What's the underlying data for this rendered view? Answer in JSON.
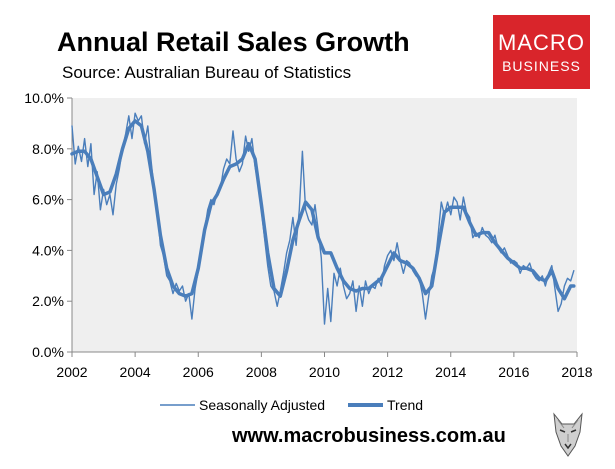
{
  "header": {
    "title": "Annual Retail Sales Growth",
    "subtitle": "Source: Australian Bureau of Statistics"
  },
  "logo": {
    "line1": "MACRO",
    "line2": "BUSINESS"
  },
  "footer": {
    "url": "www.macrobusiness.com.au"
  },
  "colors": {
    "series": "#4a7ebb",
    "plot_bg": "#efefef",
    "logo_bg": "#d9252b"
  },
  "chart_data": {
    "type": "line",
    "title": "Annual Retail Sales Growth",
    "xlabel": "",
    "ylabel": "",
    "xlim": [
      2002,
      2018
    ],
    "ylim": [
      0,
      10
    ],
    "x_ticks": [
      2002,
      2004,
      2006,
      2008,
      2010,
      2012,
      2014,
      2016,
      2018
    ],
    "y_ticks": [
      0,
      2,
      4,
      6,
      8,
      10
    ],
    "y_tick_labels": [
      "0.0%",
      "2.0%",
      "4.0%",
      "6.0%",
      "8.0%",
      "10.0%"
    ],
    "legend": [
      "Seasonally Adjusted",
      "Trend"
    ],
    "legend_position": "bottom",
    "series": [
      {
        "name": "Seasonally Adjusted",
        "style": "thin",
        "points": [
          [
            2002.0,
            8.9
          ],
          [
            2002.1,
            7.4
          ],
          [
            2002.2,
            8.1
          ],
          [
            2002.3,
            7.5
          ],
          [
            2002.4,
            8.4
          ],
          [
            2002.5,
            7.3
          ],
          [
            2002.6,
            8.2
          ],
          [
            2002.7,
            6.2
          ],
          [
            2002.8,
            7.1
          ],
          [
            2002.9,
            5.6
          ],
          [
            2003.0,
            6.4
          ],
          [
            2003.1,
            5.8
          ],
          [
            2003.2,
            6.2
          ],
          [
            2003.3,
            5.4
          ],
          [
            2003.4,
            6.6
          ],
          [
            2003.5,
            7.2
          ],
          [
            2003.6,
            8.0
          ],
          [
            2003.7,
            8.6
          ],
          [
            2003.8,
            9.3
          ],
          [
            2003.9,
            8.4
          ],
          [
            2004.0,
            9.4
          ],
          [
            2004.1,
            9.1
          ],
          [
            2004.2,
            9.3
          ],
          [
            2004.3,
            8.2
          ],
          [
            2004.4,
            8.9
          ],
          [
            2004.5,
            7.6
          ],
          [
            2004.6,
            6.4
          ],
          [
            2004.7,
            5.6
          ],
          [
            2004.8,
            4.2
          ],
          [
            2004.9,
            3.8
          ],
          [
            2005.0,
            3.0
          ],
          [
            2005.1,
            2.8
          ],
          [
            2005.2,
            2.3
          ],
          [
            2005.3,
            2.7
          ],
          [
            2005.4,
            2.4
          ],
          [
            2005.5,
            2.6
          ],
          [
            2005.6,
            2.0
          ],
          [
            2005.7,
            2.3
          ],
          [
            2005.8,
            1.3
          ],
          [
            2005.9,
            2.5
          ],
          [
            2006.0,
            3.2
          ],
          [
            2006.1,
            3.9
          ],
          [
            2006.2,
            4.8
          ],
          [
            2006.3,
            5.6
          ],
          [
            2006.4,
            6.0
          ],
          [
            2006.5,
            5.8
          ],
          [
            2006.6,
            6.3
          ],
          [
            2006.7,
            6.4
          ],
          [
            2006.8,
            7.2
          ],
          [
            2006.9,
            7.6
          ],
          [
            2007.0,
            7.4
          ],
          [
            2007.1,
            8.7
          ],
          [
            2007.2,
            7.6
          ],
          [
            2007.3,
            7.1
          ],
          [
            2007.4,
            7.4
          ],
          [
            2007.5,
            8.5
          ],
          [
            2007.6,
            7.9
          ],
          [
            2007.7,
            8.4
          ],
          [
            2007.8,
            7.3
          ],
          [
            2007.9,
            6.6
          ],
          [
            2008.0,
            5.6
          ],
          [
            2008.1,
            4.5
          ],
          [
            2008.2,
            3.4
          ],
          [
            2008.3,
            2.6
          ],
          [
            2008.4,
            2.4
          ],
          [
            2008.5,
            1.8
          ],
          [
            2008.6,
            2.4
          ],
          [
            2008.7,
            3.1
          ],
          [
            2008.8,
            3.9
          ],
          [
            2008.9,
            4.4
          ],
          [
            2009.0,
            5.3
          ],
          [
            2009.1,
            4.2
          ],
          [
            2009.2,
            5.6
          ],
          [
            2009.3,
            7.9
          ],
          [
            2009.4,
            5.6
          ],
          [
            2009.5,
            5.2
          ],
          [
            2009.6,
            5.0
          ],
          [
            2009.7,
            5.8
          ],
          [
            2009.8,
            4.8
          ],
          [
            2009.9,
            3.7
          ],
          [
            2010.0,
            1.1
          ],
          [
            2010.1,
            2.5
          ],
          [
            2010.2,
            1.2
          ],
          [
            2010.3,
            3.1
          ],
          [
            2010.4,
            2.6
          ],
          [
            2010.5,
            3.3
          ],
          [
            2010.6,
            2.6
          ],
          [
            2010.7,
            2.1
          ],
          [
            2010.8,
            2.3
          ],
          [
            2010.9,
            2.8
          ],
          [
            2011.0,
            1.6
          ],
          [
            2011.1,
            2.6
          ],
          [
            2011.2,
            1.8
          ],
          [
            2011.3,
            2.8
          ],
          [
            2011.4,
            2.3
          ],
          [
            2011.5,
            2.6
          ],
          [
            2011.6,
            2.5
          ],
          [
            2011.7,
            2.9
          ],
          [
            2011.8,
            2.6
          ],
          [
            2011.9,
            3.4
          ],
          [
            2012.0,
            3.8
          ],
          [
            2012.1,
            4.0
          ],
          [
            2012.2,
            3.6
          ],
          [
            2012.3,
            4.3
          ],
          [
            2012.4,
            3.6
          ],
          [
            2012.5,
            3.1
          ],
          [
            2012.6,
            3.6
          ],
          [
            2012.7,
            3.5
          ],
          [
            2012.8,
            3.2
          ],
          [
            2012.9,
            3.0
          ],
          [
            2013.0,
            2.9
          ],
          [
            2013.1,
            2.3
          ],
          [
            2013.2,
            1.3
          ],
          [
            2013.3,
            2.2
          ],
          [
            2013.4,
            3.0
          ],
          [
            2013.5,
            3.4
          ],
          [
            2013.6,
            4.6
          ],
          [
            2013.7,
            5.9
          ],
          [
            2013.8,
            5.4
          ],
          [
            2013.9,
            5.9
          ],
          [
            2014.0,
            5.4
          ],
          [
            2014.1,
            6.1
          ],
          [
            2014.2,
            5.9
          ],
          [
            2014.3,
            5.2
          ],
          [
            2014.4,
            6.1
          ],
          [
            2014.5,
            5.5
          ],
          [
            2014.6,
            5.3
          ],
          [
            2014.7,
            4.5
          ],
          [
            2014.8,
            4.7
          ],
          [
            2014.9,
            4.5
          ],
          [
            2015.0,
            4.9
          ],
          [
            2015.1,
            4.6
          ],
          [
            2015.2,
            4.5
          ],
          [
            2015.3,
            4.3
          ],
          [
            2015.4,
            4.6
          ],
          [
            2015.5,
            4.1
          ],
          [
            2015.6,
            3.9
          ],
          [
            2015.7,
            4.1
          ],
          [
            2015.8,
            3.8
          ],
          [
            2015.9,
            3.5
          ],
          [
            2016.0,
            3.6
          ],
          [
            2016.1,
            3.5
          ],
          [
            2016.2,
            3.1
          ],
          [
            2016.3,
            3.4
          ],
          [
            2016.4,
            3.3
          ],
          [
            2016.5,
            3.5
          ],
          [
            2016.6,
            3.1
          ],
          [
            2016.7,
            2.9
          ],
          [
            2016.8,
            2.8
          ],
          [
            2016.9,
            3.0
          ],
          [
            2017.0,
            2.6
          ],
          [
            2017.1,
            3.1
          ],
          [
            2017.2,
            3.4
          ],
          [
            2017.3,
            2.5
          ],
          [
            2017.4,
            1.6
          ],
          [
            2017.5,
            1.9
          ],
          [
            2017.6,
            2.6
          ],
          [
            2017.7,
            2.9
          ],
          [
            2017.8,
            2.8
          ],
          [
            2017.9,
            3.2
          ]
        ]
      },
      {
        "name": "Trend",
        "style": "thick",
        "points": [
          [
            2002.0,
            7.8
          ],
          [
            2002.2,
            7.9
          ],
          [
            2002.4,
            7.9
          ],
          [
            2002.6,
            7.6
          ],
          [
            2002.8,
            6.9
          ],
          [
            2003.0,
            6.2
          ],
          [
            2003.2,
            6.3
          ],
          [
            2003.4,
            7.0
          ],
          [
            2003.6,
            8.0
          ],
          [
            2003.8,
            8.8
          ],
          [
            2004.0,
            9.1
          ],
          [
            2004.2,
            8.9
          ],
          [
            2004.4,
            7.9
          ],
          [
            2004.6,
            6.4
          ],
          [
            2004.8,
            4.6
          ],
          [
            2005.0,
            3.3
          ],
          [
            2005.2,
            2.6
          ],
          [
            2005.4,
            2.3
          ],
          [
            2005.6,
            2.2
          ],
          [
            2005.8,
            2.3
          ],
          [
            2006.0,
            3.3
          ],
          [
            2006.2,
            4.8
          ],
          [
            2006.4,
            5.8
          ],
          [
            2006.6,
            6.2
          ],
          [
            2006.8,
            6.8
          ],
          [
            2007.0,
            7.3
          ],
          [
            2007.2,
            7.4
          ],
          [
            2007.4,
            7.6
          ],
          [
            2007.6,
            8.2
          ],
          [
            2007.8,
            7.6
          ],
          [
            2008.0,
            5.8
          ],
          [
            2008.2,
            3.9
          ],
          [
            2008.4,
            2.5
          ],
          [
            2008.6,
            2.2
          ],
          [
            2008.8,
            3.2
          ],
          [
            2009.0,
            4.4
          ],
          [
            2009.2,
            5.2
          ],
          [
            2009.4,
            5.9
          ],
          [
            2009.6,
            5.6
          ],
          [
            2009.8,
            4.5
          ],
          [
            2010.0,
            3.9
          ],
          [
            2010.2,
            3.9
          ],
          [
            2010.4,
            3.3
          ],
          [
            2010.6,
            2.8
          ],
          [
            2010.8,
            2.5
          ],
          [
            2011.0,
            2.4
          ],
          [
            2011.2,
            2.5
          ],
          [
            2011.4,
            2.5
          ],
          [
            2011.6,
            2.7
          ],
          [
            2011.8,
            2.9
          ],
          [
            2012.0,
            3.4
          ],
          [
            2012.2,
            3.9
          ],
          [
            2012.4,
            3.6
          ],
          [
            2012.6,
            3.5
          ],
          [
            2012.8,
            3.3
          ],
          [
            2013.0,
            2.9
          ],
          [
            2013.2,
            2.3
          ],
          [
            2013.4,
            2.6
          ],
          [
            2013.6,
            4.1
          ],
          [
            2013.8,
            5.5
          ],
          [
            2014.0,
            5.7
          ],
          [
            2014.2,
            5.7
          ],
          [
            2014.4,
            5.7
          ],
          [
            2014.6,
            5.1
          ],
          [
            2014.8,
            4.6
          ],
          [
            2015.0,
            4.7
          ],
          [
            2015.2,
            4.7
          ],
          [
            2015.4,
            4.3
          ],
          [
            2015.6,
            4.0
          ],
          [
            2015.8,
            3.7
          ],
          [
            2016.0,
            3.5
          ],
          [
            2016.2,
            3.3
          ],
          [
            2016.4,
            3.3
          ],
          [
            2016.6,
            3.2
          ],
          [
            2016.8,
            2.9
          ],
          [
            2017.0,
            2.8
          ],
          [
            2017.2,
            3.2
          ],
          [
            2017.4,
            2.5
          ],
          [
            2017.6,
            2.1
          ],
          [
            2017.8,
            2.6
          ],
          [
            2017.9,
            2.6
          ]
        ]
      }
    ]
  }
}
